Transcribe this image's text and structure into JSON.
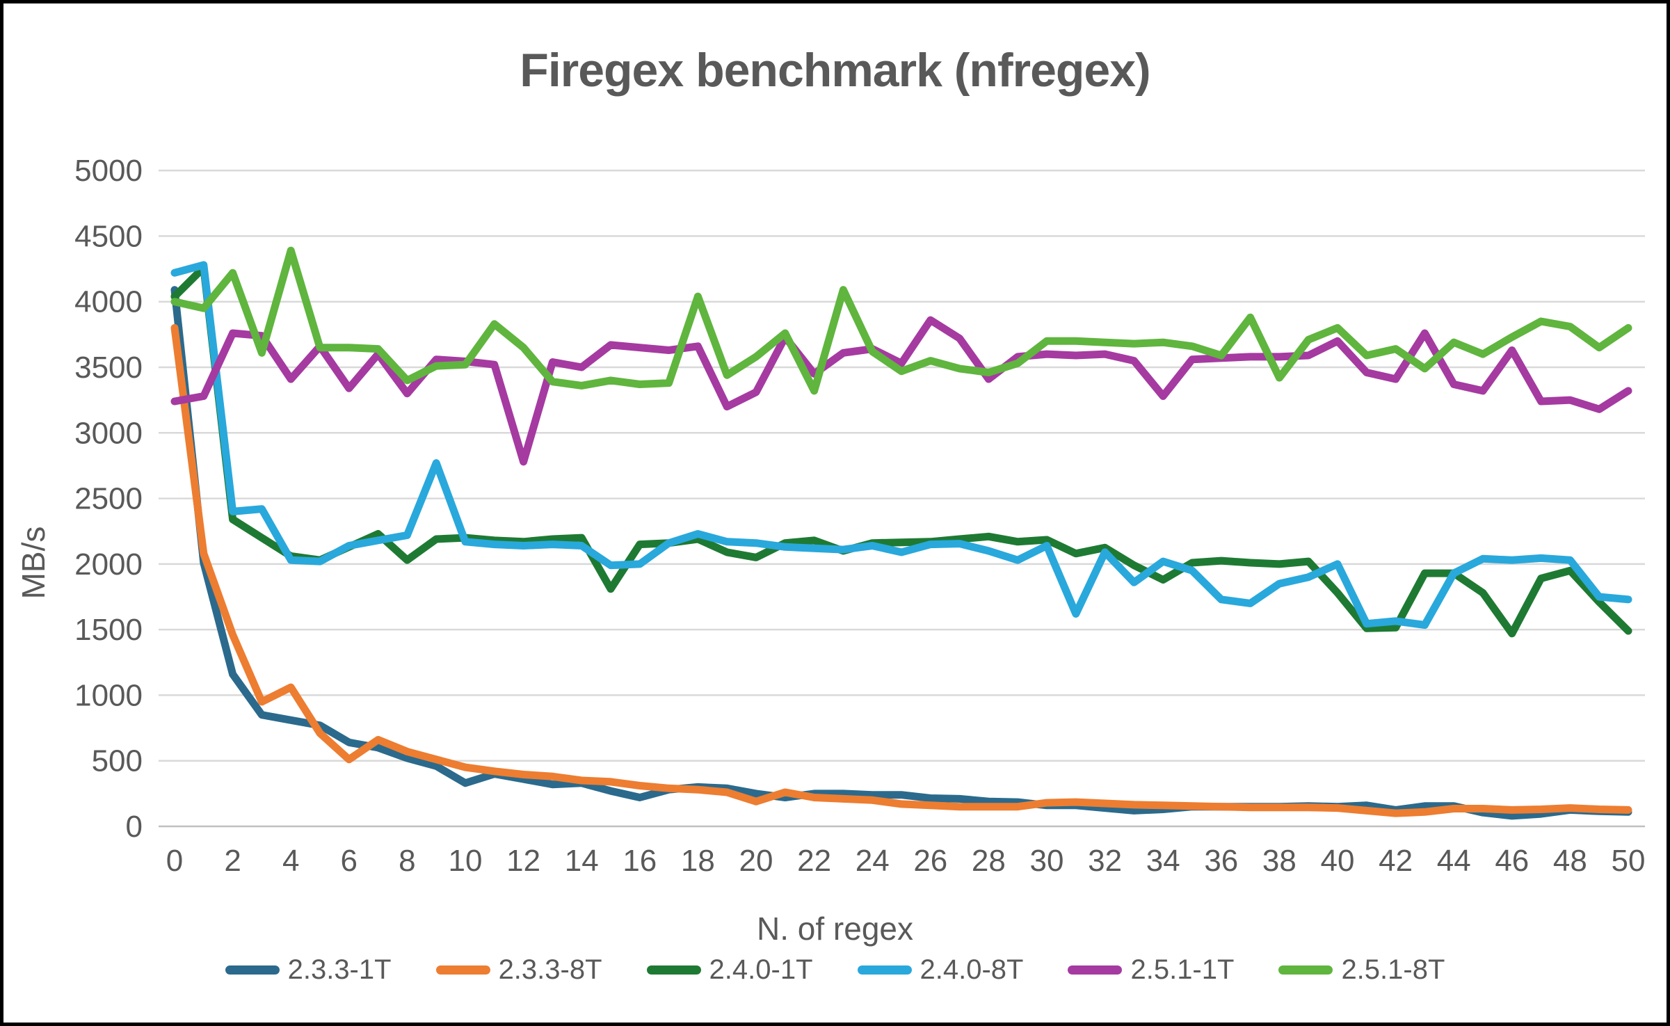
{
  "title": "Firegex benchmark (nfregex)",
  "colors": {
    "text": "#595959",
    "grid": "#D9D9D9",
    "axis": "#BFBFBF",
    "border": "#000000",
    "background": "#FFFFFF"
  },
  "chart_data": {
    "type": "line",
    "title": "Firegex benchmark (nfregex)",
    "xlabel": "N. of regex",
    "ylabel": "MB/s",
    "xlim": [
      0,
      50
    ],
    "ylim": [
      0,
      5000
    ],
    "x_tick_step": 2,
    "y_tick_step": 500,
    "y_ticks": [
      5000,
      4500,
      4000,
      3500,
      3000,
      2500,
      2000,
      1500,
      1000,
      500,
      0
    ],
    "x_ticks": [
      0,
      2,
      4,
      6,
      8,
      10,
      12,
      14,
      16,
      18,
      20,
      22,
      24,
      26,
      28,
      30,
      32,
      34,
      36,
      38,
      40,
      42,
      44,
      46,
      48,
      50
    ],
    "grid": "horizontal",
    "legend_position": "bottom",
    "x": [
      0,
      1,
      2,
      3,
      4,
      5,
      6,
      7,
      8,
      9,
      10,
      11,
      12,
      13,
      14,
      15,
      16,
      17,
      18,
      19,
      20,
      21,
      22,
      23,
      24,
      25,
      26,
      27,
      28,
      29,
      30,
      31,
      32,
      33,
      34,
      35,
      36,
      37,
      38,
      39,
      40,
      41,
      42,
      43,
      44,
      45,
      46,
      47,
      48,
      49,
      50
    ],
    "series": [
      {
        "name": "2.3.3-1T",
        "color": "#2B6A8C",
        "values": [
          4090,
          2010,
          1160,
          850,
          810,
          770,
          640,
          600,
          520,
          460,
          330,
          400,
          360,
          320,
          330,
          270,
          220,
          280,
          300,
          290,
          250,
          220,
          250,
          250,
          240,
          240,
          215,
          210,
          190,
          185,
          160,
          160,
          140,
          120,
          130,
          150,
          150,
          150,
          150,
          155,
          150,
          160,
          125,
          155,
          155,
          105,
          80,
          95,
          125,
          115,
          110
        ]
      },
      {
        "name": "2.3.3-8T",
        "color": "#ED7D31",
        "values": [
          3800,
          2080,
          1460,
          950,
          1060,
          710,
          510,
          660,
          570,
          510,
          450,
          420,
          395,
          380,
          350,
          340,
          310,
          290,
          280,
          260,
          190,
          260,
          220,
          210,
          200,
          170,
          160,
          150,
          150,
          150,
          180,
          185,
          175,
          165,
          160,
          155,
          150,
          145,
          145,
          145,
          140,
          120,
          100,
          110,
          135,
          135,
          125,
          130,
          140,
          130,
          125
        ]
      },
      {
        "name": "2.4.0-1T",
        "color": "#1E7A33",
        "values": [
          4040,
          4260,
          2340,
          2200,
          2060,
          2030,
          2130,
          2230,
          2030,
          2190,
          2200,
          2180,
          2170,
          2190,
          2200,
          1810,
          2150,
          2160,
          2190,
          2090,
          2050,
          2160,
          2180,
          2100,
          2160,
          2165,
          2170,
          2190,
          2210,
          2170,
          2185,
          2080,
          2125,
          1990,
          1880,
          2010,
          2025,
          2010,
          2000,
          2020,
          1780,
          1510,
          1515,
          1930,
          1930,
          1780,
          1470,
          1890,
          1950,
          1710,
          1490
        ]
      },
      {
        "name": "2.4.0-8T",
        "color": "#29A8DC",
        "values": [
          4220,
          4280,
          2400,
          2420,
          2030,
          2020,
          2140,
          2180,
          2220,
          2770,
          2170,
          2150,
          2140,
          2150,
          2140,
          1990,
          2000,
          2160,
          2230,
          2170,
          2160,
          2130,
          2120,
          2110,
          2140,
          2090,
          2150,
          2155,
          2100,
          2030,
          2140,
          1620,
          2090,
          1860,
          2020,
          1950,
          1730,
          1700,
          1850,
          1900,
          2000,
          1545,
          1565,
          1535,
          1930,
          2040,
          2030,
          2045,
          2030,
          1750,
          1730
        ]
      },
      {
        "name": "2.5.1-1T",
        "color": "#A53AA1",
        "values": [
          3240,
          3280,
          3760,
          3740,
          3410,
          3660,
          3340,
          3600,
          3300,
          3560,
          3545,
          3520,
          2780,
          3540,
          3500,
          3670,
          3650,
          3630,
          3660,
          3200,
          3310,
          3730,
          3450,
          3610,
          3640,
          3530,
          3860,
          3720,
          3410,
          3580,
          3600,
          3590,
          3600,
          3550,
          3280,
          3560,
          3570,
          3580,
          3580,
          3590,
          3700,
          3460,
          3410,
          3760,
          3370,
          3320,
          3630,
          3240,
          3250,
          3180,
          3320
        ]
      },
      {
        "name": "2.5.1-8T",
        "color": "#5FB53E",
        "values": [
          4000,
          3950,
          4220,
          3610,
          4390,
          3650,
          3650,
          3640,
          3400,
          3510,
          3520,
          3830,
          3650,
          3390,
          3360,
          3400,
          3370,
          3380,
          4040,
          3440,
          3580,
          3760,
          3320,
          4090,
          3620,
          3470,
          3550,
          3490,
          3460,
          3530,
          3700,
          3700,
          3690,
          3680,
          3690,
          3660,
          3590,
          3880,
          3420,
          3710,
          3800,
          3590,
          3640,
          3490,
          3690,
          3600,
          3730,
          3850,
          3810,
          3650,
          3800
        ]
      }
    ]
  }
}
